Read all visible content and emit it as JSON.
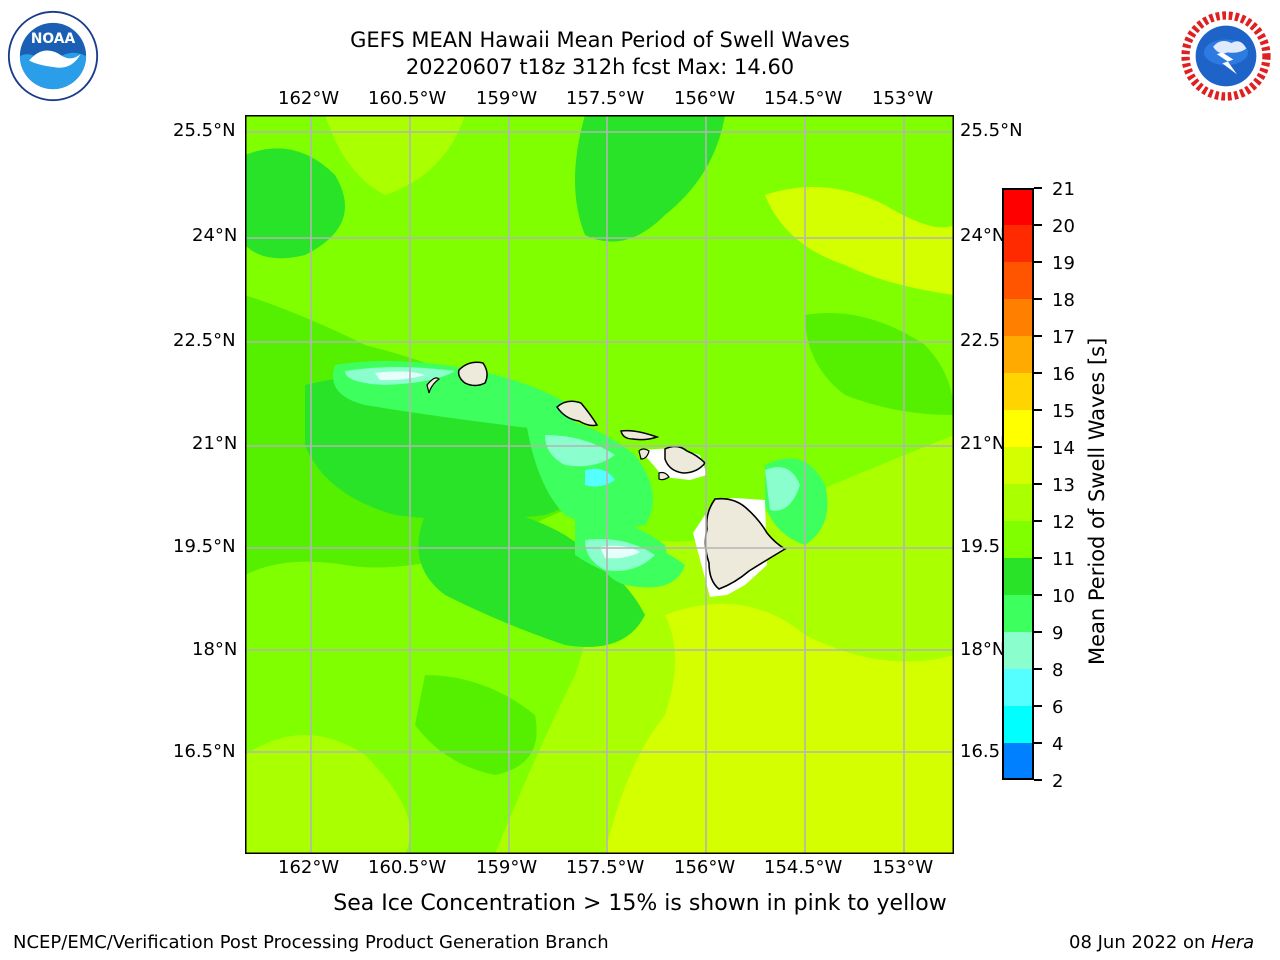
{
  "header": {
    "title_line1": "GEFS MEAN Hawaii Mean Period of Swell Waves",
    "title_line2": "20220607 t18z 312h fcst   Max: 14.60"
  },
  "logos": {
    "left": {
      "icon": "noaa-logo-icon",
      "text": "NOAA"
    },
    "right": {
      "icon": "nws-logo-icon",
      "text": "NATIONAL WEATHER SERVICE"
    }
  },
  "map": {
    "lon_labels": [
      "162°W",
      "160.5°W",
      "159°W",
      "157.5°W",
      "156°W",
      "154.5°W",
      "153°W"
    ],
    "lat_labels": [
      "25.5°N",
      "24°N",
      "22.5°N",
      "21°N",
      "19.5°N",
      "18°N",
      "16.5°N"
    ],
    "lat_labels_right": [
      "25.5°N",
      "24°N",
      "22.5",
      "21°N",
      "19.5",
      "18°N",
      "16.5"
    ],
    "grid": true,
    "lon_range": [
      -163,
      -152.6
    ],
    "lat_range": [
      15.0,
      25.9
    ],
    "land_color": "#eeeadb",
    "ocean_base_color": "#80ff00"
  },
  "colorbar": {
    "label": "Mean Period of Swell Waves [s]",
    "ticks": [
      "21",
      "20",
      "19",
      "18",
      "17",
      "16",
      "15",
      "14",
      "13",
      "12",
      "11",
      "10",
      "9",
      "8",
      "6",
      "4",
      "2"
    ],
    "colors": [
      "#ff0000",
      "#ff2a00",
      "#ff5500",
      "#ff7f00",
      "#ffaa00",
      "#ffd400",
      "#ffff00",
      "#d4ff00",
      "#aaff00",
      "#80ff00",
      "#29e329",
      "#3dff5d",
      "#8affcd",
      "#55ffff",
      "#00ffff",
      "#0080ff",
      "#0000ff"
    ]
  },
  "caption": "Sea Ice Concentration > 15% is shown in pink to yellow",
  "footer": {
    "left": "NCEP/EMC/Verification Post Processing Product Generation Branch",
    "right_prefix": "08 Jun 2022 on ",
    "right_host": "Hera"
  }
}
